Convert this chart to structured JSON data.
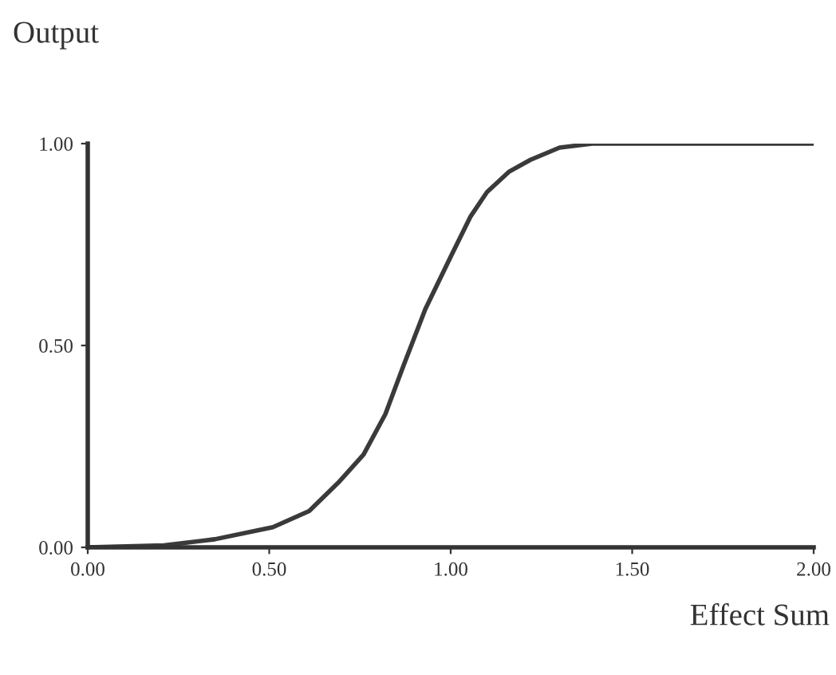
{
  "chart_data": {
    "type": "line",
    "ylabel": "Output",
    "xlabel": "Effect Sum",
    "x": [
      0,
      0.21,
      0.35,
      0.51,
      0.61,
      0.69,
      0.76,
      0.82,
      0.87,
      0.93,
      1.0,
      1.055,
      1.1,
      1.16,
      1.22,
      1.3,
      1.39,
      2.0
    ],
    "series": [
      {
        "color": "#3a3a3a",
        "values": [
          0,
          0.005,
          0.02,
          0.05,
          0.09,
          0.16,
          0.23,
          0.33,
          0.45,
          0.59,
          0.72,
          0.82,
          0.88,
          0.93,
          0.96,
          0.99,
          1.0,
          1.0
        ]
      }
    ],
    "xlim": [
      0,
      2
    ],
    "ylim": [
      0,
      1
    ],
    "xticks": [
      {
        "value": 0,
        "label": "0.00"
      },
      {
        "value": 0.5,
        "label": "0.50"
      },
      {
        "value": 1,
        "label": "1.00"
      },
      {
        "value": 1.5,
        "label": "1.50"
      },
      {
        "value": 2,
        "label": "2.00"
      }
    ],
    "yticks": [
      {
        "value": 0,
        "label": "0.00"
      },
      {
        "value": 0.5,
        "label": "0.50"
      },
      {
        "value": 1,
        "label": "1.00"
      }
    ],
    "grid": false,
    "legend": false,
    "marker": "none",
    "line_style": "solid"
  }
}
